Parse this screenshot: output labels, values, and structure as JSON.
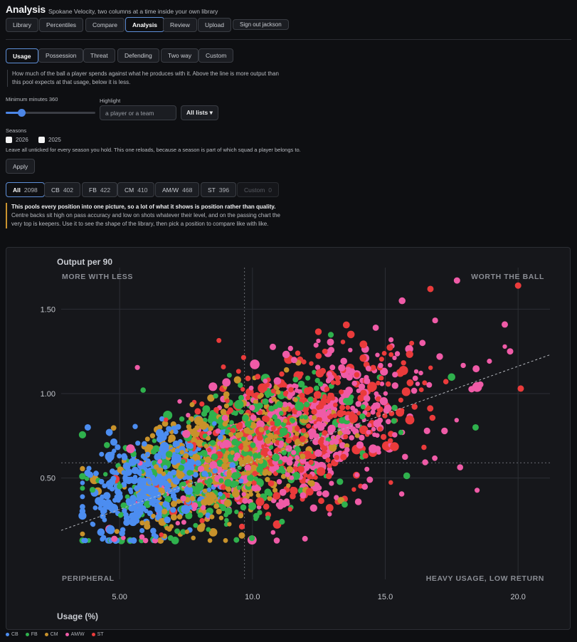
{
  "header": {
    "title": "Analysis",
    "subtitle": "Spokane Velocity, two columns at a time inside your own library"
  },
  "nav": [
    "Library",
    "Percentiles",
    "Compare",
    "Analysis",
    "Review",
    "Upload"
  ],
  "nav_active": "Analysis",
  "signout": "Sign out jackson",
  "subtabs": [
    "Usage",
    "Possession",
    "Threat",
    "Defending",
    "Two way",
    "Custom"
  ],
  "subtab_active": "Usage",
  "description": "How much of the ball a player spends against what he produces with it. Above the line is more output than this pool expects at that usage, below it is less.",
  "filters": {
    "min_minutes_label": "Minimum minutes 360",
    "min_minutes_value": 360,
    "highlight_label": "Highlight",
    "highlight_placeholder": "a player or a team",
    "lists_button": "All lists ▾",
    "seasons_label": "Seasons",
    "seasons": [
      "2026",
      "2025"
    ],
    "seasons_note": "Leave all unticked for every season you hold. This one reloads, because a season is part of which squad a player belongs to.",
    "apply": "Apply"
  },
  "positions": [
    {
      "label": "All",
      "count": "2098",
      "active": true,
      "disabled": false
    },
    {
      "label": "CB",
      "count": "402",
      "active": false,
      "disabled": false
    },
    {
      "label": "FB",
      "count": "422",
      "active": false,
      "disabled": false
    },
    {
      "label": "CM",
      "count": "410",
      "active": false,
      "disabled": false
    },
    {
      "label": "AM/W",
      "count": "468",
      "active": false,
      "disabled": false
    },
    {
      "label": "ST",
      "count": "396",
      "active": false,
      "disabled": false
    },
    {
      "label": "Custom",
      "count": "0",
      "active": false,
      "disabled": true
    }
  ],
  "note": {
    "bold": "This pools every position into one picture, so a lot of what it shows is position rather than quality.",
    "text": "Centre backs sit high on pass accuracy and low on shots whatever their level, and on the passing chart the very top is keepers. Use it to see the shape of the library, then pick a position to compare like with like."
  },
  "chart_data": {
    "type": "scatter",
    "ylabel": "Output per 90",
    "xlabel": "Usage (%)",
    "xlim": [
      2.8,
      21.2
    ],
    "ylim": [
      -0.1,
      1.78
    ],
    "x_ticks": [
      "5.00",
      "10.0",
      "15.0",
      "20.0"
    ],
    "x_tick_values": [
      5,
      10,
      15,
      20
    ],
    "y_ticks": [
      "1.50",
      "1.00",
      "0.50"
    ],
    "y_tick_values": [
      1.5,
      1.0,
      0.5
    ],
    "grid": true,
    "quadrants": {
      "top_left": "MORE WITH LESS",
      "top_right": "WORTH THE BALL",
      "bottom_left": "PERIPHERAL",
      "bottom_right": "HEAVY USAGE, LOW RETURN"
    },
    "reference_x": 9.7,
    "reference_y": 0.59,
    "trend_line": {
      "x": [
        2.8,
        21.2
      ],
      "y": [
        0.19,
        1.23
      ]
    },
    "legend_position": "bottom-left",
    "series": [
      {
        "name": "CB",
        "color": "#4c8df0",
        "count": 402,
        "x_mean": 6.2,
        "x_sd": 1.3,
        "y_mean": 0.47,
        "y_sd": 0.14
      },
      {
        "name": "FB",
        "color": "#2fb14d",
        "count": 422,
        "x_mean": 9.3,
        "x_sd": 2.3,
        "y_mean": 0.62,
        "y_sd": 0.2
      },
      {
        "name": "CM",
        "color": "#c8922b",
        "count": 410,
        "x_mean": 8.8,
        "x_sd": 2.0,
        "y_mean": 0.6,
        "y_sd": 0.18
      },
      {
        "name": "AM/W",
        "color": "#ef5ba7",
        "count": 468,
        "x_mean": 11.8,
        "x_sd": 2.6,
        "y_mean": 0.76,
        "y_sd": 0.22
      },
      {
        "name": "ST",
        "color": "#ea3b3b",
        "count": 396,
        "x_mean": 11.6,
        "x_sd": 2.3,
        "y_mean": 0.79,
        "y_sd": 0.22
      }
    ],
    "outliers": [
      {
        "series": "ST",
        "x": 20.0,
        "y": 1.64
      },
      {
        "series": "AM/W",
        "x": 17.7,
        "y": 1.67
      },
      {
        "series": "ST",
        "x": 16.7,
        "y": 1.62
      },
      {
        "series": "ST",
        "x": 20.1,
        "y": 1.03
      },
      {
        "series": "AM/W",
        "x": 19.7,
        "y": 1.25
      },
      {
        "series": "CB",
        "x": 3.8,
        "y": 0.8
      },
      {
        "series": "FB",
        "x": 18.4,
        "y": 0.8
      },
      {
        "series": "CM",
        "x": 9.6,
        "y": 0.16
      },
      {
        "series": "AM/W",
        "x": 4.8,
        "y": 0.14
      }
    ]
  }
}
